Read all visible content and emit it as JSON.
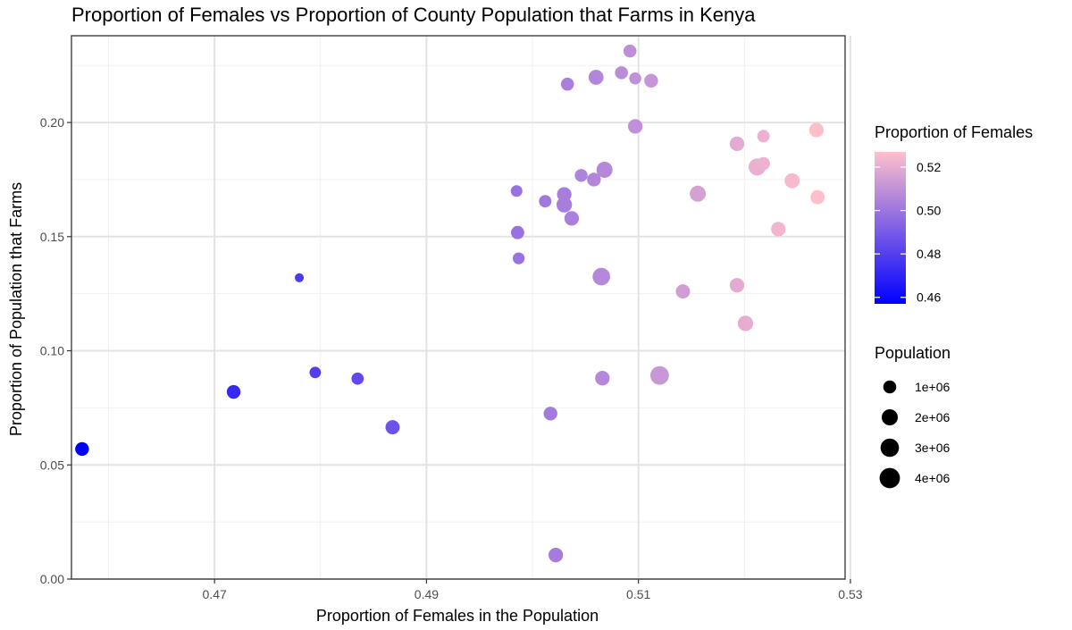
{
  "chart_data": {
    "type": "scatter",
    "title": "Proportion of Females vs Proportion of County Population that Farms in Kenya",
    "xlabel": "Proportion of Females in the Population",
    "ylabel": "Proportion of Population that Farms",
    "xlim": [
      0.4565,
      0.5295
    ],
    "ylim": [
      0.0,
      0.238
    ],
    "x_ticks": [
      0.47,
      0.49,
      0.51,
      0.53
    ],
    "x_tick_labels": [
      "0.47",
      "0.49",
      "0.51",
      "0.53"
    ],
    "y_ticks": [
      0.0,
      0.05,
      0.1,
      0.15,
      0.2
    ],
    "y_tick_labels": [
      "0.00",
      "0.05",
      "0.10",
      "0.15",
      "0.20"
    ],
    "grid": true,
    "color_legend": {
      "title": "Proportion of Females",
      "low_color": "#0000FF",
      "high_color": "#FFC0CB",
      "min": 0.457,
      "max": 0.527,
      "breaks": [
        0.46,
        0.48,
        0.5,
        0.52
      ],
      "break_labels": [
        "0.46",
        "0.48",
        "0.50",
        "0.52"
      ]
    },
    "size_legend": {
      "title": "Population",
      "breaks": [
        1000000,
        2000000,
        3000000,
        4000000
      ],
      "break_labels": [
        "1e+06",
        "2e+06",
        "3e+06",
        "4e+06"
      ]
    },
    "points": [
      {
        "x": 0.4575,
        "y": 0.057,
        "population": 1200000
      },
      {
        "x": 0.4718,
        "y": 0.082,
        "population": 1200000
      },
      {
        "x": 0.478,
        "y": 0.132,
        "population": 200000
      },
      {
        "x": 0.4795,
        "y": 0.0905,
        "population": 600000
      },
      {
        "x": 0.4835,
        "y": 0.0878,
        "population": 800000
      },
      {
        "x": 0.4868,
        "y": 0.0665,
        "population": 1350000
      },
      {
        "x": 0.4985,
        "y": 0.17,
        "population": 650000
      },
      {
        "x": 0.4986,
        "y": 0.1518,
        "population": 1050000
      },
      {
        "x": 0.4987,
        "y": 0.1405,
        "population": 700000
      },
      {
        "x": 0.5012,
        "y": 0.1655,
        "population": 850000
      },
      {
        "x": 0.5017,
        "y": 0.0725,
        "population": 1200000
      },
      {
        "x": 0.5022,
        "y": 0.0105,
        "population": 1450000
      },
      {
        "x": 0.503,
        "y": 0.1685,
        "population": 1450000
      },
      {
        "x": 0.503,
        "y": 0.164,
        "population": 1800000
      },
      {
        "x": 0.5033,
        "y": 0.2168,
        "population": 1000000
      },
      {
        "x": 0.5037,
        "y": 0.158,
        "population": 1450000
      },
      {
        "x": 0.5046,
        "y": 0.1768,
        "population": 950000
      },
      {
        "x": 0.5058,
        "y": 0.175,
        "population": 1200000
      },
      {
        "x": 0.506,
        "y": 0.2198,
        "population": 1600000
      },
      {
        "x": 0.5065,
        "y": 0.1325,
        "population": 2600000
      },
      {
        "x": 0.5066,
        "y": 0.088,
        "population": 1450000
      },
      {
        "x": 0.5068,
        "y": 0.1793,
        "population": 2000000
      },
      {
        "x": 0.5084,
        "y": 0.2218,
        "population": 1000000
      },
      {
        "x": 0.5092,
        "y": 0.2313,
        "population": 1000000
      },
      {
        "x": 0.5097,
        "y": 0.2193,
        "population": 750000
      },
      {
        "x": 0.5097,
        "y": 0.1983,
        "population": 1450000
      },
      {
        "x": 0.5112,
        "y": 0.2183,
        "population": 1200000
      },
      {
        "x": 0.512,
        "y": 0.0892,
        "population": 3100000
      },
      {
        "x": 0.5142,
        "y": 0.126,
        "population": 1350000
      },
      {
        "x": 0.5156,
        "y": 0.1688,
        "population": 2000000
      },
      {
        "x": 0.5193,
        "y": 0.1907,
        "population": 1450000
      },
      {
        "x": 0.5193,
        "y": 0.1287,
        "population": 1450000
      },
      {
        "x": 0.5201,
        "y": 0.112,
        "population": 1750000
      },
      {
        "x": 0.5212,
        "y": 0.1805,
        "population": 2400000
      },
      {
        "x": 0.5218,
        "y": 0.182,
        "population": 1000000
      },
      {
        "x": 0.5218,
        "y": 0.194,
        "population": 850000
      },
      {
        "x": 0.5245,
        "y": 0.1745,
        "population": 1600000
      },
      {
        "x": 0.5232,
        "y": 0.1533,
        "population": 1450000
      },
      {
        "x": 0.5268,
        "y": 0.1967,
        "population": 1450000
      },
      {
        "x": 0.5269,
        "y": 0.1673,
        "population": 1350000
      }
    ]
  }
}
